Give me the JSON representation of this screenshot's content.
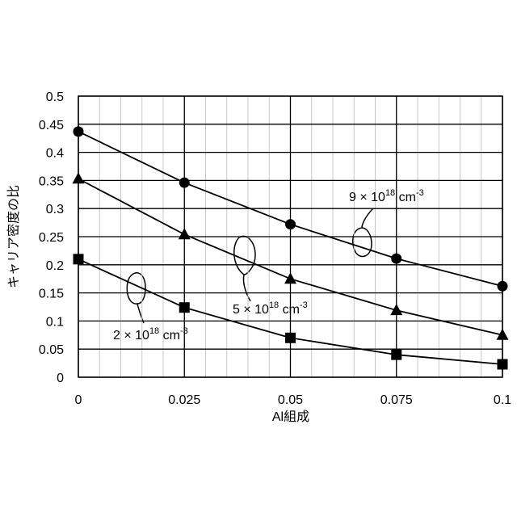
{
  "chart_data": {
    "type": "line",
    "x_label": "Al組成",
    "y_label": "キャリア密度の比",
    "x": [
      0,
      0.025,
      0.05,
      0.075,
      0.1
    ],
    "series": [
      {
        "marker": "circle",
        "color": "#000000",
        "values": [
          0.437,
          0.346,
          0.272,
          0.211,
          0.162
        ]
      },
      {
        "marker": "triangle",
        "color": "#000000",
        "values": [
          0.353,
          0.254,
          0.175,
          0.119,
          0.075
        ]
      },
      {
        "marker": "square",
        "color": "#000000",
        "values": [
          0.21,
          0.124,
          0.07,
          0.04,
          0.023
        ]
      }
    ],
    "xlim": [
      0,
      0.1
    ],
    "ylim": [
      0,
      0.5
    ],
    "xticks": [
      0,
      0.025,
      0.05,
      0.075,
      0.1
    ],
    "xminorticks": [
      0.005,
      0.01,
      0.015,
      0.02,
      0.03,
      0.035,
      0.04,
      0.045,
      0.055,
      0.06,
      0.065,
      0.07,
      0.08,
      0.085,
      0.09,
      0.095
    ],
    "yticks": [
      0,
      0.05,
      0.1,
      0.15,
      0.2,
      0.25,
      0.3,
      0.35,
      0.4,
      0.45,
      0.5
    ],
    "grid": true,
    "annotations": [
      {
        "base": "9 × 10",
        "exp": "18",
        "unit": " cm",
        "unit_exp": "-3"
      },
      {
        "base": "5 × 10",
        "exp": "18",
        "unit": " cm",
        "unit_exp": "-3"
      },
      {
        "base": "2 × 10",
        "exp": "18",
        "unit": " cm",
        "unit_exp": "-3"
      }
    ]
  }
}
